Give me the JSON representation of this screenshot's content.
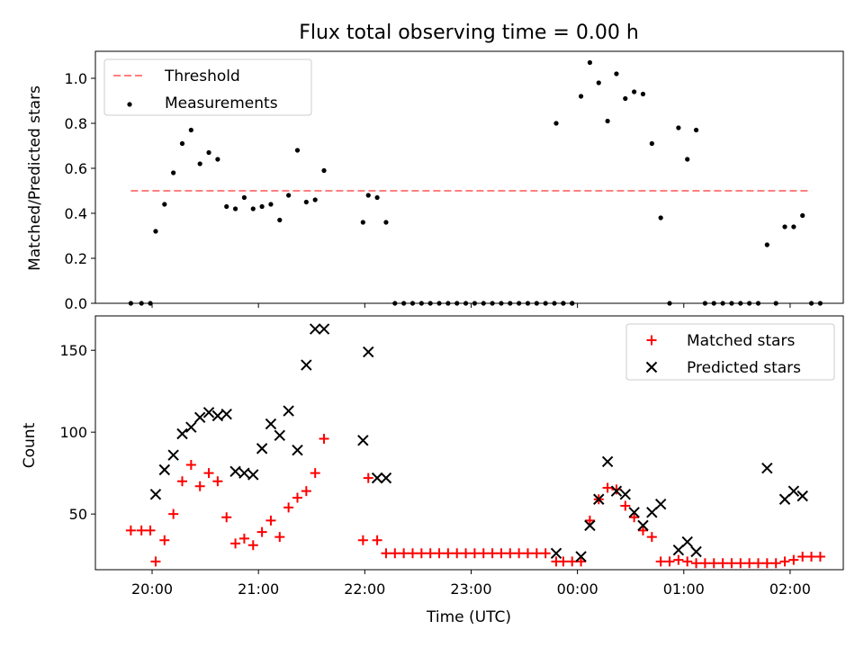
{
  "chart_data": [
    {
      "type": "scatter",
      "title": "Flux total observing time = 0.00 h",
      "ylabel": "Matched/Predicted stars",
      "xlim": [
        "19:28",
        "02:30"
      ],
      "ylim": [
        0,
        1.12
      ],
      "xticks": [
        "20:00",
        "21:00",
        "22:00",
        "23:00",
        "00:00",
        "01:00",
        "02:00"
      ],
      "yticks": [
        "0.0",
        "0.2",
        "0.4",
        "0.6",
        "0.8",
        "1.0"
      ],
      "legend": {
        "position": "top-left",
        "entries": [
          "Threshold",
          "Measurements"
        ]
      },
      "threshold": {
        "name": "Threshold",
        "value": 0.5,
        "x_range": [
          "19:48",
          "02:12"
        ],
        "color": "#ff7f7f"
      },
      "series": [
        {
          "name": "Measurements",
          "color": "#000000",
          "points": [
            [
              "19:48",
              0
            ],
            [
              "19:54",
              0
            ],
            [
              "19:59",
              0
            ],
            [
              "20:02",
              0.32
            ],
            [
              "20:07",
              0.44
            ],
            [
              "20:12",
              0.58
            ],
            [
              "20:17",
              0.71
            ],
            [
              "20:22",
              0.77
            ],
            [
              "20:27",
              0.62
            ],
            [
              "20:32",
              0.67
            ],
            [
              "20:37",
              0.64
            ],
            [
              "20:42",
              0.43
            ],
            [
              "20:47",
              0.42
            ],
            [
              "20:52",
              0.47
            ],
            [
              "20:57",
              0.42
            ],
            [
              "21:02",
              0.43
            ],
            [
              "21:07",
              0.44
            ],
            [
              "21:12",
              0.37
            ],
            [
              "21:17",
              0.48
            ],
            [
              "21:22",
              0.68
            ],
            [
              "21:27",
              0.45
            ],
            [
              "21:32",
              0.46
            ],
            [
              "21:37",
              0.59
            ],
            [
              "21:59",
              0.36
            ],
            [
              "22:02",
              0.48
            ],
            [
              "22:07",
              0.47
            ],
            [
              "22:12",
              0.36
            ],
            [
              "22:17",
              0
            ],
            [
              "22:22",
              0
            ],
            [
              "22:27",
              0
            ],
            [
              "22:32",
              0
            ],
            [
              "22:37",
              0
            ],
            [
              "22:42",
              0
            ],
            [
              "22:47",
              0
            ],
            [
              "22:52",
              0
            ],
            [
              "22:57",
              0
            ],
            [
              "23:02",
              0
            ],
            [
              "23:07",
              0
            ],
            [
              "23:12",
              0
            ],
            [
              "23:17",
              0
            ],
            [
              "23:22",
              0
            ],
            [
              "23:27",
              0
            ],
            [
              "23:32",
              0
            ],
            [
              "23:37",
              0
            ],
            [
              "23:42",
              0
            ],
            [
              "23:47",
              0
            ],
            [
              "23:52",
              0
            ],
            [
              "23:57",
              0
            ],
            [
              "23:48",
              0.8
            ],
            [
              "23:52",
              0
            ],
            [
              "23:57",
              0
            ],
            [
              "00:02",
              0.92
            ],
            [
              "00:07",
              1.07
            ],
            [
              "00:12",
              0.98
            ],
            [
              "00:17",
              0.81
            ],
            [
              "00:22",
              1.02
            ],
            [
              "00:27",
              0.91
            ],
            [
              "00:32",
              0.94
            ],
            [
              "00:37",
              0.93
            ],
            [
              "00:42",
              0.71
            ],
            [
              "00:47",
              0.38
            ],
            [
              "00:52",
              0
            ],
            [
              "00:57",
              0.78
            ],
            [
              "01:02",
              0.64
            ],
            [
              "01:07",
              0.77
            ],
            [
              "01:12",
              0
            ],
            [
              "01:17",
              0
            ],
            [
              "01:22",
              0
            ],
            [
              "01:27",
              0
            ],
            [
              "01:32",
              0
            ],
            [
              "01:37",
              0
            ],
            [
              "01:42",
              0
            ],
            [
              "01:47",
              0.26
            ],
            [
              "01:52",
              0
            ],
            [
              "01:57",
              0.34
            ],
            [
              "02:02",
              0.34
            ],
            [
              "02:07",
              0.39
            ],
            [
              "02:12",
              0
            ],
            [
              "02:17",
              0
            ]
          ]
        }
      ]
    },
    {
      "type": "scatter",
      "xlabel": "Time (UTC)",
      "ylabel": "Count",
      "xlim": [
        "19:28",
        "02:30"
      ],
      "ylim": [
        16,
        171
      ],
      "xticks": [
        "20:00",
        "21:00",
        "22:00",
        "23:00",
        "00:00",
        "01:00",
        "02:00"
      ],
      "yticks": [
        "50",
        "100",
        "150"
      ],
      "legend": {
        "position": "top-right",
        "entries": [
          "Matched stars",
          "Predicted stars"
        ]
      },
      "series": [
        {
          "name": "Matched stars",
          "marker": "+",
          "color": "#ff0000",
          "points": [
            [
              "19:48",
              40
            ],
            [
              "19:54",
              40
            ],
            [
              "19:59",
              40
            ],
            [
              "20:02",
              21
            ],
            [
              "20:07",
              34
            ],
            [
              "20:12",
              50
            ],
            [
              "20:17",
              70
            ],
            [
              "20:22",
              80
            ],
            [
              "20:27",
              67
            ],
            [
              "20:32",
              75
            ],
            [
              "20:37",
              70
            ],
            [
              "20:42",
              48
            ],
            [
              "20:47",
              32
            ],
            [
              "20:52",
              35
            ],
            [
              "20:57",
              31
            ],
            [
              "21:02",
              39
            ],
            [
              "21:07",
              46
            ],
            [
              "21:12",
              36
            ],
            [
              "21:17",
              54
            ],
            [
              "21:22",
              60
            ],
            [
              "21:27",
              64
            ],
            [
              "21:32",
              75
            ],
            [
              "21:37",
              96
            ],
            [
              "21:59",
              34
            ],
            [
              "22:02",
              72
            ],
            [
              "22:07",
              34
            ],
            [
              "22:12",
              26
            ],
            [
              "22:17",
              26
            ],
            [
              "22:22",
              26
            ],
            [
              "22:27",
              26
            ],
            [
              "22:32",
              26
            ],
            [
              "22:37",
              26
            ],
            [
              "22:42",
              26
            ],
            [
              "22:47",
              26
            ],
            [
              "22:52",
              26
            ],
            [
              "22:57",
              26
            ],
            [
              "23:02",
              26
            ],
            [
              "23:07",
              26
            ],
            [
              "23:12",
              26
            ],
            [
              "23:17",
              26
            ],
            [
              "23:22",
              26
            ],
            [
              "23:27",
              26
            ],
            [
              "23:32",
              26
            ],
            [
              "23:37",
              26
            ],
            [
              "23:42",
              26
            ],
            [
              "23:48",
              21
            ],
            [
              "23:52",
              21
            ],
            [
              "23:57",
              21
            ],
            [
              "00:02",
              21
            ],
            [
              "00:07",
              46
            ],
            [
              "00:12",
              59
            ],
            [
              "00:17",
              66
            ],
            [
              "00:22",
              65
            ],
            [
              "00:27",
              55
            ],
            [
              "00:32",
              48
            ],
            [
              "00:37",
              40
            ],
            [
              "00:42",
              36
            ],
            [
              "00:47",
              21
            ],
            [
              "00:52",
              21
            ],
            [
              "00:57",
              22
            ],
            [
              "01:02",
              21
            ],
            [
              "01:07",
              20
            ],
            [
              "01:12",
              20
            ],
            [
              "01:17",
              20
            ],
            [
              "01:22",
              20
            ],
            [
              "01:27",
              20
            ],
            [
              "01:32",
              20
            ],
            [
              "01:37",
              20
            ],
            [
              "01:42",
              20
            ],
            [
              "01:47",
              20
            ],
            [
              "01:52",
              20
            ],
            [
              "01:57",
              21
            ],
            [
              "02:02",
              22
            ],
            [
              "02:07",
              24
            ],
            [
              "02:12",
              24
            ],
            [
              "02:17",
              24
            ]
          ]
        },
        {
          "name": "Predicted stars",
          "marker": "x",
          "color": "#000000",
          "points": [
            [
              "20:02",
              62
            ],
            [
              "20:07",
              77
            ],
            [
              "20:12",
              86
            ],
            [
              "20:17",
              99
            ],
            [
              "20:22",
              103
            ],
            [
              "20:27",
              109
            ],
            [
              "20:32",
              112
            ],
            [
              "20:37",
              110
            ],
            [
              "20:42",
              111
            ],
            [
              "20:47",
              76
            ],
            [
              "20:52",
              75
            ],
            [
              "20:57",
              74
            ],
            [
              "21:02",
              90
            ],
            [
              "21:07",
              105
            ],
            [
              "21:12",
              98
            ],
            [
              "21:17",
              113
            ],
            [
              "21:22",
              89
            ],
            [
              "21:27",
              141
            ],
            [
              "21:32",
              163
            ],
            [
              "21:37",
              163
            ],
            [
              "21:59",
              95
            ],
            [
              "22:02",
              149
            ],
            [
              "22:07",
              72
            ],
            [
              "22:12",
              72
            ],
            [
              "23:48",
              26
            ],
            [
              "00:02",
              24
            ],
            [
              "00:07",
              43
            ],
            [
              "00:12",
              59
            ],
            [
              "00:17",
              82
            ],
            [
              "00:22",
              64
            ],
            [
              "00:27",
              62
            ],
            [
              "00:32",
              51
            ],
            [
              "00:37",
              43
            ],
            [
              "00:42",
              51
            ],
            [
              "00:47",
              56
            ],
            [
              "00:57",
              28
            ],
            [
              "01:02",
              33
            ],
            [
              "01:07",
              27
            ],
            [
              "01:47",
              78
            ],
            [
              "01:57",
              59
            ],
            [
              "02:02",
              64
            ],
            [
              "02:07",
              61
            ]
          ]
        }
      ]
    }
  ]
}
